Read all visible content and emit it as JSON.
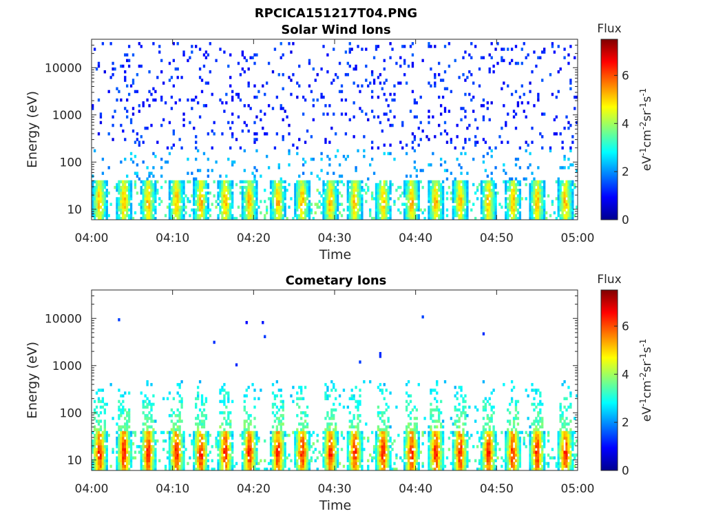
{
  "figure_title": "RPCICA151217T04.PNG",
  "chart_data": [
    {
      "type": "heatmap",
      "title": "Solar Wind Ions",
      "xlabel": "Time",
      "ylabel": "Energy (eV)",
      "x_ticks": [
        "04:00",
        "04:10",
        "04:20",
        "04:30",
        "04:40",
        "04:50",
        "05:00"
      ],
      "xlim": [
        "04:00",
        "05:00"
      ],
      "y_scale": "log",
      "y_ticks": [
        "10",
        "100",
        "1000",
        "10000"
      ],
      "ylim": [
        6,
        40000
      ],
      "colorbar": {
        "title": "Flux",
        "label": "eV-1cm-2sr-1s-1",
        "ticks": [
          "0",
          "2",
          "4",
          "6"
        ],
        "range": [
          0,
          7.5
        ],
        "colormap": "jet"
      },
      "pulse_times_min": [
        1,
        4,
        7,
        10.5,
        13.5,
        16.5,
        19.5,
        23,
        26,
        29.5,
        32.5,
        36,
        39.5,
        42.5,
        45.5,
        49,
        52,
        55,
        58.5
      ],
      "pulse_energy_range_eV": [
        6,
        40
      ],
      "pulse_peak_flux": 5.6,
      "background_energy_range_eV": [
        40,
        35000
      ],
      "background_flux": 1.2
    },
    {
      "type": "heatmap",
      "title": "Cometary Ions",
      "xlabel": "Time",
      "ylabel": "Energy (eV)",
      "x_ticks": [
        "04:00",
        "04:10",
        "04:20",
        "04:30",
        "04:40",
        "04:50",
        "05:00"
      ],
      "xlim": [
        "04:00",
        "05:00"
      ],
      "y_scale": "log",
      "y_ticks": [
        "10",
        "100",
        "1000",
        "10000"
      ],
      "ylim": [
        6,
        40000
      ],
      "colorbar": {
        "title": "Flux",
        "label": "eV-1cm-2sr-1s-1",
        "ticks": [
          "0",
          "2",
          "4",
          "6"
        ],
        "range": [
          0,
          7.5
        ],
        "colormap": "jet"
      },
      "pulse_times_min": [
        1,
        4,
        7,
        10.5,
        13.5,
        16.5,
        19.5,
        23,
        26,
        29.5,
        32.5,
        36,
        39.5,
        42.5,
        45.5,
        49,
        52,
        55,
        58.5
      ],
      "pulse_energy_range_eV": [
        6,
        40
      ],
      "pulse_peak_flux": 6.8,
      "plume_energy_range_eV": [
        40,
        500
      ],
      "plume_flux": 2.5,
      "background_energy_range_eV": [
        500,
        15000
      ],
      "background_flux": 1.2
    }
  ]
}
